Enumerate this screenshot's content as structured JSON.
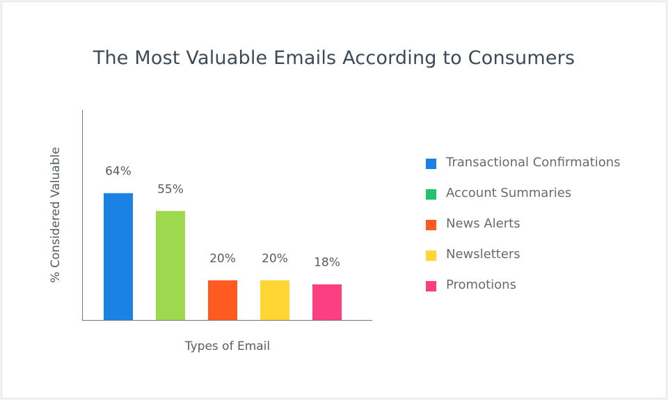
{
  "chart_data": {
    "type": "bar",
    "title": "The Most Valuable Emails According to Consumers",
    "xlabel": "Types of Email",
    "ylabel": "% Considered Valuable",
    "categories": [
      "Transactional Confirmations",
      "Account Summaries",
      "News Alerts",
      "Newsletters",
      "Promotions"
    ],
    "values": [
      64,
      55,
      20,
      20,
      18
    ],
    "value_labels": [
      "64%",
      "55%",
      "20%",
      "20%",
      "18%"
    ],
    "colors": [
      "#1a82e2",
      "#9ed84f",
      "#ff5a20",
      "#ffd633",
      "#fd3f82"
    ],
    "legend_colors": [
      "#1a82e2",
      "#24c16f",
      "#ff5a20",
      "#ffd633",
      "#fd3f82"
    ],
    "ylim": [
      0,
      106
    ],
    "grid": false,
    "legend_position": "right"
  }
}
